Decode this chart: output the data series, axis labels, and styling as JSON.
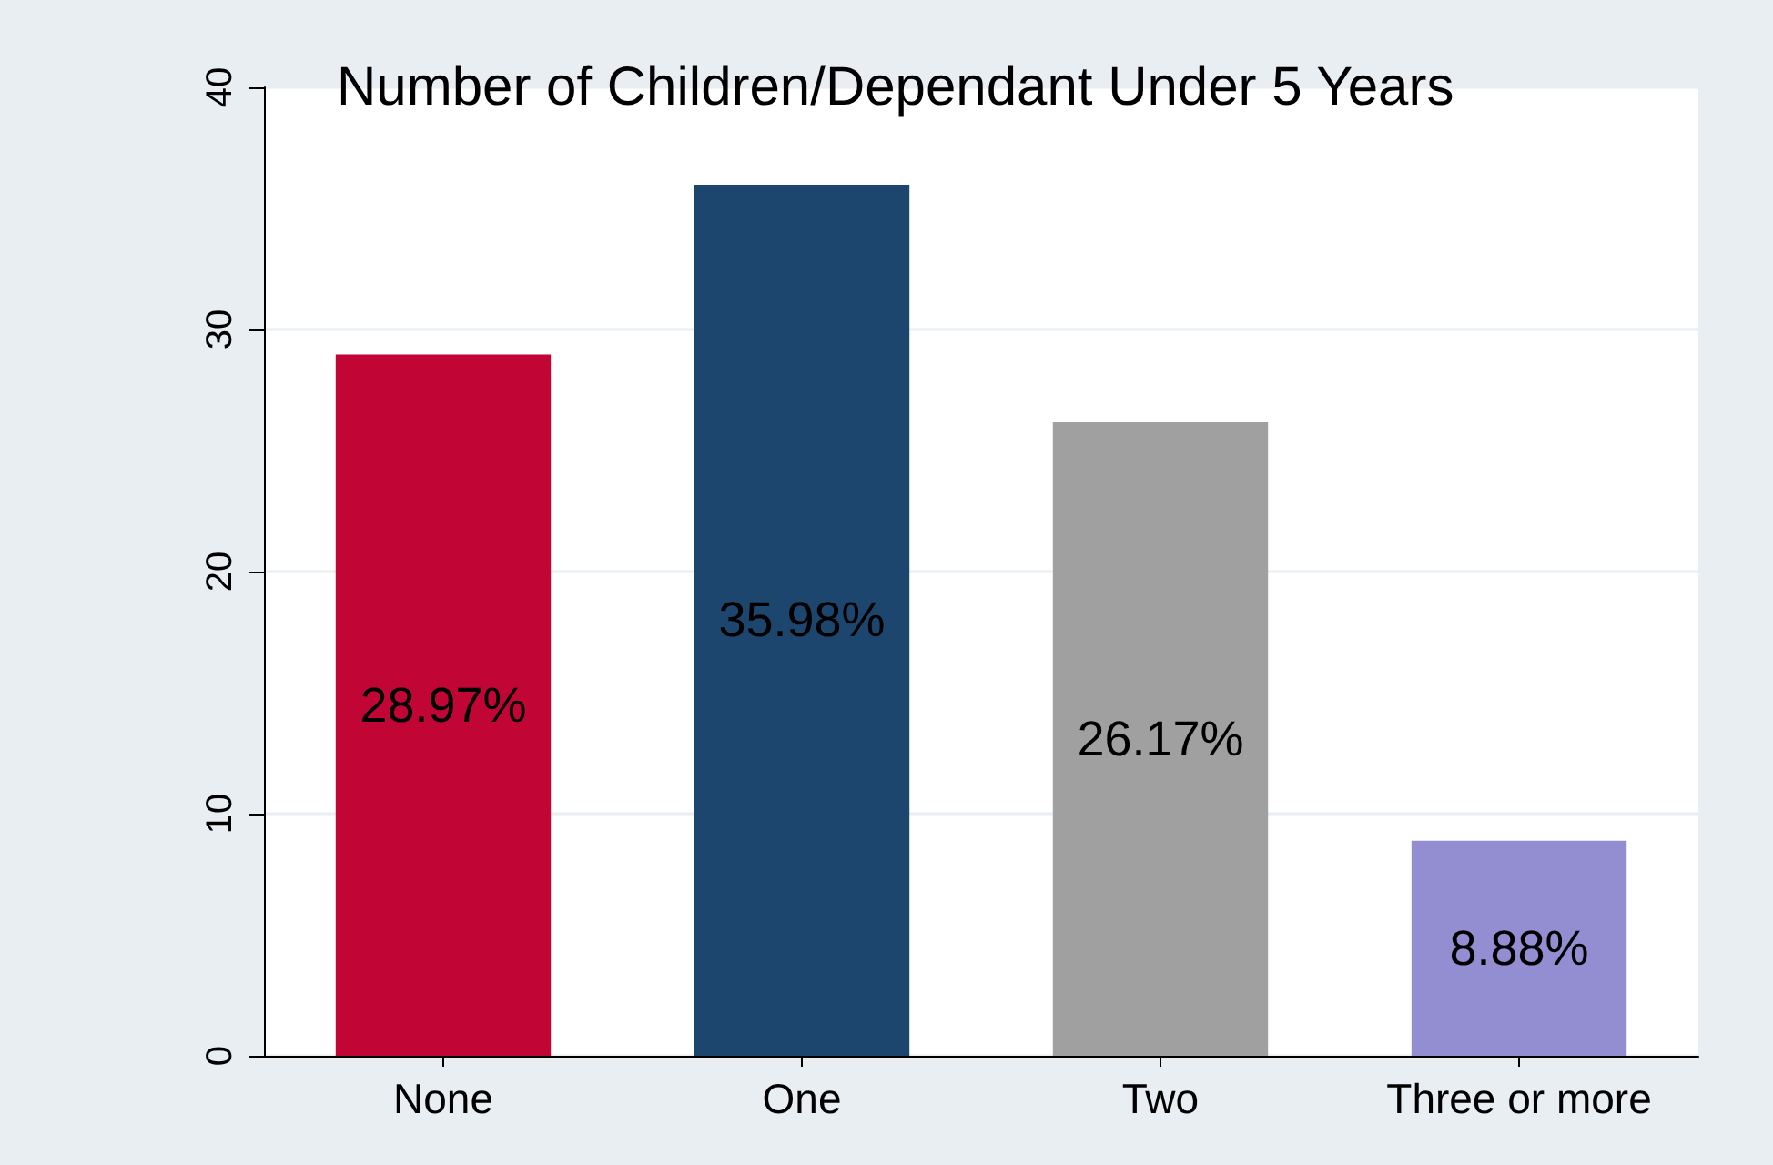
{
  "chart_data": {
    "type": "bar",
    "title": "Number of Children/Dependant Under 5 Years",
    "categories": [
      "None",
      "One",
      "Two",
      "Three or more"
    ],
    "values": [
      28.97,
      35.98,
      26.17,
      8.88
    ],
    "colors": [
      "#c10534",
      "#1c466d",
      "#a0a0a0",
      "#938dd2"
    ],
    "value_labels": [
      "28.97%",
      "35.98%",
      "26.17%",
      "8.88%"
    ],
    "ylim": [
      0,
      40
    ],
    "yticks": [
      0,
      10,
      20,
      30,
      40
    ],
    "grid": "y"
  }
}
